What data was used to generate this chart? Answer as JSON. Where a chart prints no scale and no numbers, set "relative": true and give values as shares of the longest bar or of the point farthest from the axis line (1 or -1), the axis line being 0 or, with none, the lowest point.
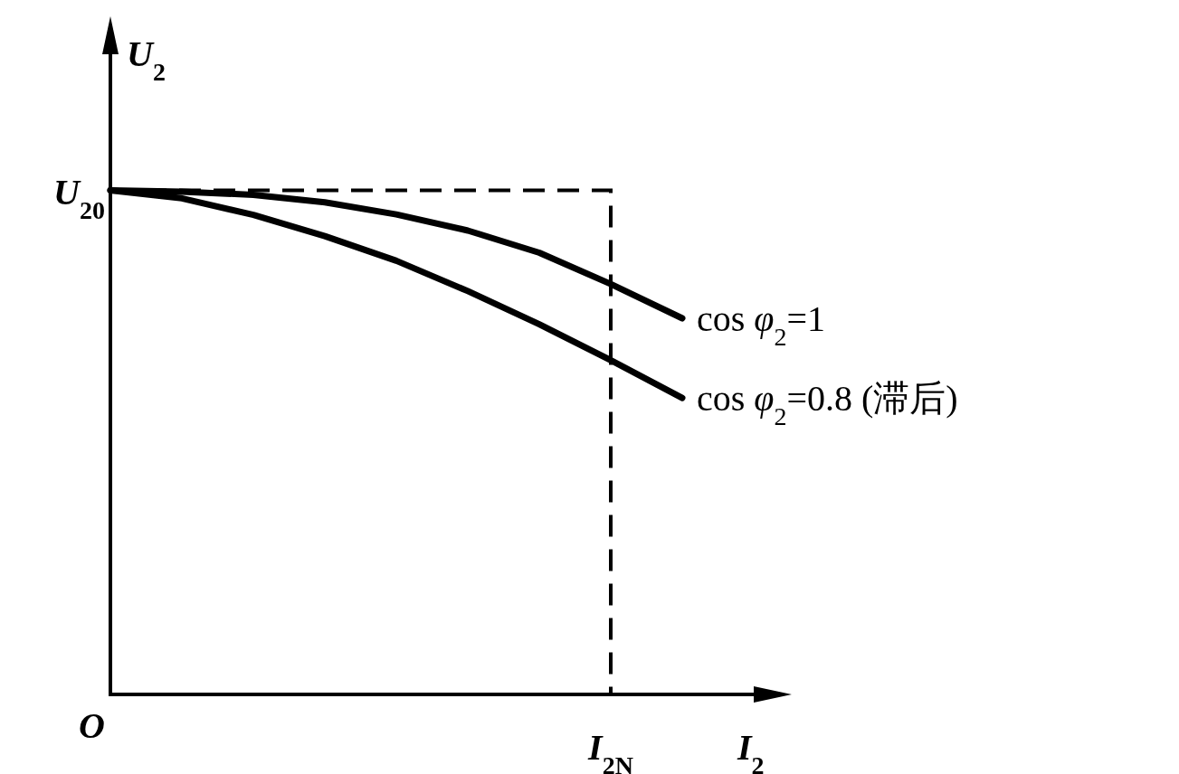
{
  "chart_data": {
    "type": "line",
    "relative": true,
    "xlabel": "*I*$_{2}$",
    "ylabel": "*U*$_{2}$",
    "line_style": "solid",
    "categories": [
      null,
      null,
      null,
      null,
      null,
      null,
      null,
      null,
      null
    ],
    "annotations": [
      "O",
      "*U*$_{20}$",
      "*I*$_{2N}$"
    ],
    "series": [
      {
        "name": "cos *φ*$_{2}$=1",
        "color": "#000000",
        "values": [
          1.0,
          0.997,
          0.991,
          0.976,
          0.952,
          0.92,
          0.876,
          0.814,
          0.746
        ]
      },
      {
        "name": "cos *φ*$_{2}$=0.8 (滞后)",
        "color": "#000000",
        "values": [
          1.0,
          0.984,
          0.951,
          0.909,
          0.86,
          0.8,
          0.734,
          0.663,
          0.588
        ]
      }
    ]
  }
}
